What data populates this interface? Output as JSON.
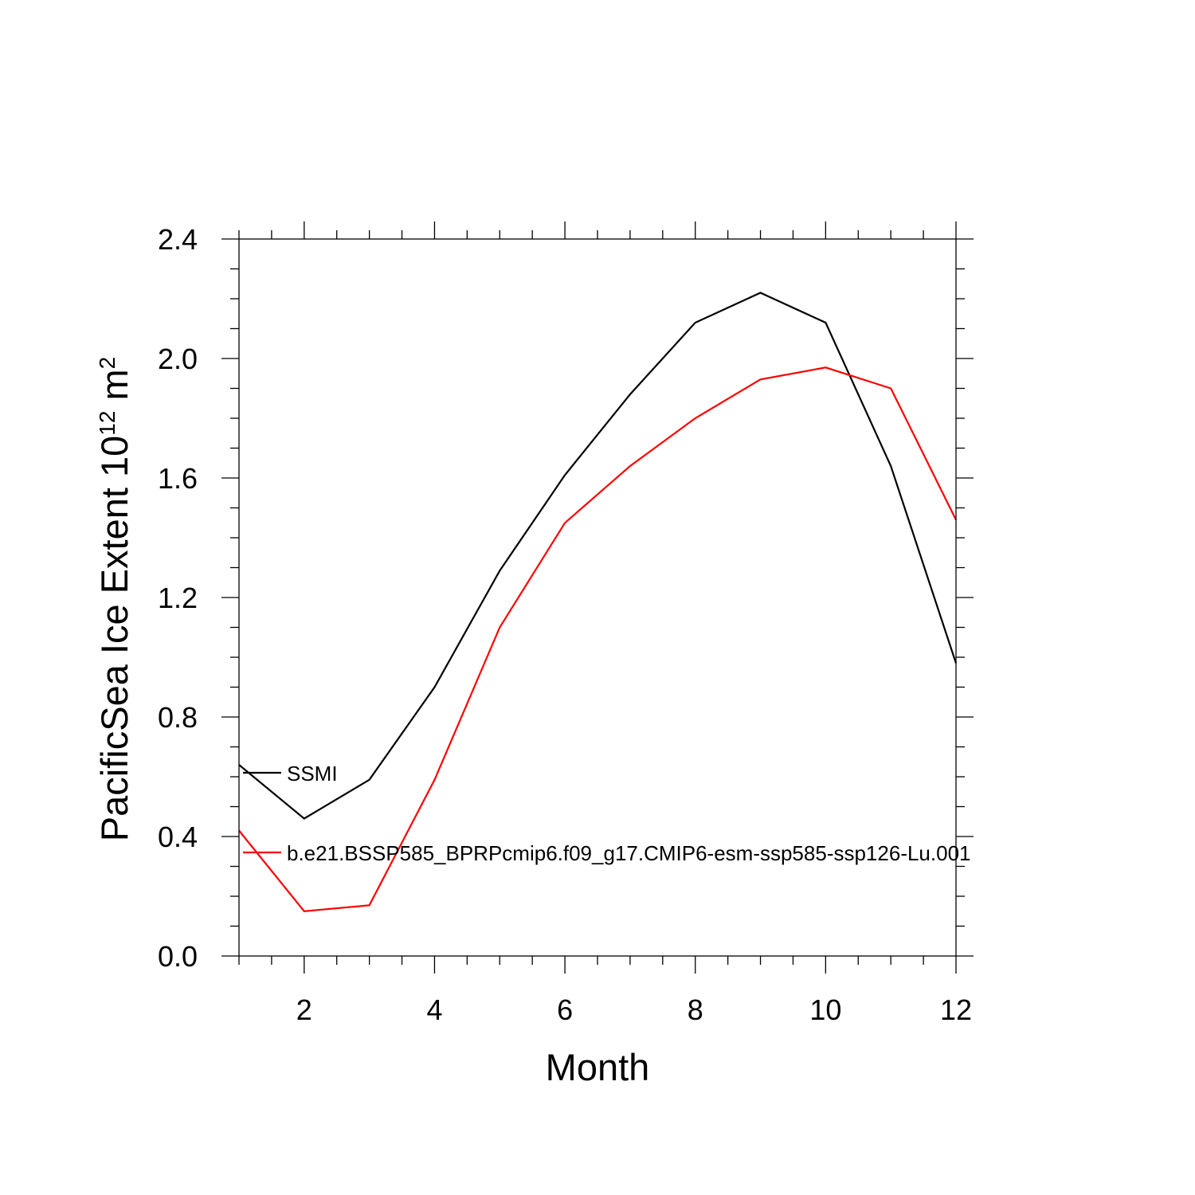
{
  "chart_data": {
    "type": "line",
    "title": "",
    "xlabel": "Month",
    "ylabel": {
      "prefix": "PacificSea Ice Extent 10",
      "exponent": "12",
      "unit": " m",
      "unit_exponent": "2"
    },
    "xlim": [
      1,
      12
    ],
    "ylim": [
      0.0,
      2.4
    ],
    "x_ticks": [
      2,
      4,
      6,
      8,
      10,
      12
    ],
    "x_tick_labels": [
      "2",
      "4",
      "6",
      "8",
      "10",
      "12"
    ],
    "y_ticks": [
      0.0,
      0.4,
      0.8,
      1.2,
      1.6,
      2.0,
      2.4
    ],
    "y_tick_labels": [
      "0.0",
      "0.4",
      "0.8",
      "1.2",
      "1.6",
      "2.0",
      "2.4"
    ],
    "grid": false,
    "legend_placement": "left, inside plot",
    "x": [
      1,
      2,
      3,
      4,
      5,
      6,
      7,
      8,
      9,
      10,
      11,
      12
    ],
    "series": [
      {
        "name": "SSMI",
        "color": "#000000",
        "values": [
          0.64,
          0.46,
          0.59,
          0.9,
          1.29,
          1.61,
          1.88,
          2.12,
          2.22,
          2.12,
          1.64,
          0.98
        ]
      },
      {
        "name": "b.e21.BSSP585_BPRPcmip6.f09_g17.CMIP6-esm-ssp585-ssp126-Lu.001",
        "color": "#ff0000",
        "values": [
          0.42,
          0.15,
          0.17,
          0.59,
          1.1,
          1.45,
          1.64,
          1.8,
          1.93,
          1.97,
          1.9,
          1.46
        ]
      }
    ]
  }
}
